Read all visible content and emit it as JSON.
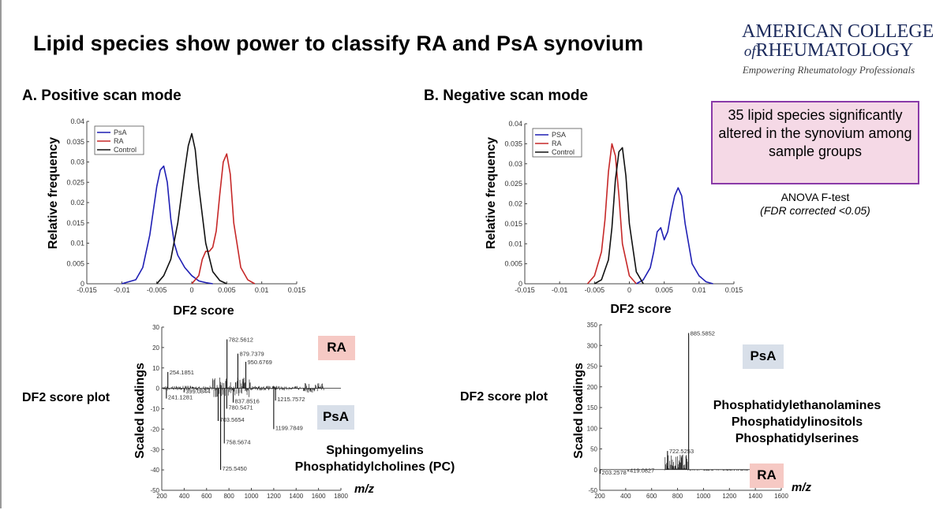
{
  "slide": {
    "title": "Lipid species show power to classify RA and PsA synovium",
    "logo": {
      "line1": "AMERICAN COLLEGE",
      "line2_of": "of",
      "line2": "RHEUMATOLOGY",
      "tagline": "Empowering Rheumatology Professionals"
    },
    "sectionA": "A. Positive scan mode",
    "sectionB": "B. Negative scan mode",
    "note": {
      "text": "35 lipid species significantly altered in the synovium among sample groups",
      "test": "ANOVA F-test",
      "fdr": "(FDR corrected <0.05)"
    },
    "plot_label_left": "DF2 score plot",
    "plot_label_right": "DF2 score plot",
    "tag_ra": "RA",
    "tag_psa": "PsA",
    "classes_left": [
      "Sphingomyelins",
      "Phosphatidylcholines (PC)"
    ],
    "classes_right": [
      "Phosphatidylethanolamines",
      "Phosphatidylinositols",
      "Phosphatidylserines"
    ],
    "mz_label": "m/z"
  },
  "chart_data": [
    {
      "type": "line",
      "name": "A-distribution",
      "xlabel": "DF2 score",
      "ylabel": "Relative frequency",
      "xlim": [
        -0.015,
        0.015
      ],
      "ylim": [
        0,
        0.04
      ],
      "xticks": [
        "-0.015",
        "-0.01",
        "-0.005",
        "0",
        "0.005",
        "0.01",
        "0.015"
      ],
      "yticks": [
        "0",
        "0.005",
        "0.01",
        "0.015",
        "0.02",
        "0.025",
        "0.03",
        "0.035",
        "0.04"
      ],
      "legend": [
        "PsA",
        "RA",
        "Control"
      ],
      "legend_position": "top-left",
      "colors": [
        "#1f1fb4",
        "#c62828",
        "#111111"
      ],
      "series": [
        {
          "name": "PsA",
          "color": "#1f1fb4",
          "x": [
            -0.01,
            -0.008,
            -0.007,
            -0.006,
            -0.005,
            -0.0045,
            -0.004,
            -0.0035,
            -0.003,
            -0.0025,
            -0.002,
            -0.001,
            0,
            0.001,
            0.002,
            0.003
          ],
          "y": [
            0,
            0.001,
            0.004,
            0.012,
            0.024,
            0.028,
            0.029,
            0.025,
            0.016,
            0.01,
            0.007,
            0.004,
            0.002,
            0.0007,
            0.0003,
            0
          ]
        },
        {
          "name": "RA",
          "color": "#c62828",
          "x": [
            0,
            0.001,
            0.0015,
            0.002,
            0.0025,
            0.003,
            0.0035,
            0.004,
            0.0045,
            0.005,
            0.0055,
            0.006,
            0.007,
            0.008,
            0.009
          ],
          "y": [
            0,
            0.002,
            0.006,
            0.008,
            0.008,
            0.009,
            0.013,
            0.022,
            0.03,
            0.032,
            0.027,
            0.015,
            0.004,
            0.001,
            0
          ]
        },
        {
          "name": "Control",
          "color": "#111111",
          "x": [
            -0.005,
            -0.004,
            -0.003,
            -0.002,
            -0.001,
            -0.0005,
            0,
            0.0005,
            0.001,
            0.002,
            0.003,
            0.004,
            0.005
          ],
          "y": [
            0,
            0.002,
            0.006,
            0.015,
            0.028,
            0.034,
            0.037,
            0.033,
            0.024,
            0.01,
            0.003,
            0.0008,
            0
          ]
        }
      ]
    },
    {
      "type": "line",
      "name": "B-distribution",
      "xlabel": "DF2 score",
      "ylabel": "Relative frequency",
      "xlim": [
        -0.015,
        0.015
      ],
      "ylim": [
        0,
        0.04
      ],
      "xticks": [
        "-0.015",
        "-0.01",
        "-0.005",
        "0",
        "0.005",
        "0.01",
        "0.015"
      ],
      "yticks": [
        "0",
        "0.005",
        "0.01",
        "0.015",
        "0.02",
        "0.025",
        "0.03",
        "0.035",
        "0.04"
      ],
      "legend": [
        "PSA",
        "RA",
        "Control"
      ],
      "legend_position": "top-left",
      "colors": [
        "#1f1fb4",
        "#c62828",
        "#111111"
      ],
      "series": [
        {
          "name": "PSA",
          "color": "#1f1fb4",
          "x": [
            0.001,
            0.002,
            0.003,
            0.0035,
            0.004,
            0.0045,
            0.005,
            0.0055,
            0.006,
            0.0065,
            0.007,
            0.0075,
            0.008,
            0.009,
            0.01,
            0.011,
            0.012
          ],
          "y": [
            0,
            0.001,
            0.004,
            0.008,
            0.013,
            0.014,
            0.011,
            0.013,
            0.018,
            0.022,
            0.024,
            0.022,
            0.015,
            0.005,
            0.002,
            0.0005,
            0
          ]
        },
        {
          "name": "RA",
          "color": "#c62828",
          "x": [
            -0.006,
            -0.005,
            -0.004,
            -0.0035,
            -0.003,
            -0.0025,
            -0.002,
            -0.0015,
            -0.001,
            0,
            0.001
          ],
          "y": [
            0,
            0.002,
            0.008,
            0.016,
            0.028,
            0.035,
            0.032,
            0.022,
            0.01,
            0.002,
            0
          ]
        },
        {
          "name": "Control",
          "color": "#111111",
          "x": [
            -0.005,
            -0.004,
            -0.003,
            -0.0025,
            -0.002,
            -0.0015,
            -0.001,
            -0.0005,
            0,
            0.001,
            0.002
          ],
          "y": [
            0,
            0.001,
            0.006,
            0.014,
            0.026,
            0.033,
            0.034,
            0.027,
            0.015,
            0.003,
            0
          ]
        }
      ]
    },
    {
      "type": "bar",
      "name": "A-loadings",
      "xlabel": "m/z",
      "ylabel": "Scaled loadings",
      "xlim": [
        200,
        1800
      ],
      "ylim": [
        -50,
        30
      ],
      "xticks": [
        "200",
        "400",
        "600",
        "800",
        "1000",
        "1200",
        "1400",
        "1600",
        "1800"
      ],
      "yticks": [
        "-50",
        "-40",
        "-30",
        "-20",
        "-10",
        "0",
        "10",
        "20",
        "30"
      ],
      "peaks": [
        {
          "mz": 254.1851,
          "value": 8,
          "label": "254.1851"
        },
        {
          "mz": 241.1281,
          "value": -5,
          "label": "241.1281"
        },
        {
          "mz": 399.0844,
          "value": -2,
          "label": "399.0844"
        },
        {
          "mz": 703.5654,
          "value": -16,
          "label": "703.5654"
        },
        {
          "mz": 758.5674,
          "value": -27,
          "label": "758.5674"
        },
        {
          "mz": 725.545,
          "value": -40,
          "label": "725.5450"
        },
        {
          "mz": 780.5471,
          "value": -10,
          "label": "780.5471"
        },
        {
          "mz": 782.5612,
          "value": 24,
          "label": "782.5612"
        },
        {
          "mz": 879.7379,
          "value": 17,
          "label": "879.7379"
        },
        {
          "mz": 950.6769,
          "value": 13,
          "label": "950.6769"
        },
        {
          "mz": 837.8516,
          "value": -7,
          "label": "837.8516"
        },
        {
          "mz": 1215.7572,
          "value": -6,
          "label": "1215.7572"
        },
        {
          "mz": 1199.7849,
          "value": -20,
          "label": "1199.7849"
        }
      ]
    },
    {
      "type": "bar",
      "name": "B-loadings",
      "xlabel": "m/z",
      "ylabel": "Scaled loadings",
      "xlim": [
        200,
        1600
      ],
      "ylim": [
        -50,
        350
      ],
      "xticks": [
        "200",
        "400",
        "600",
        "800",
        "1000",
        "1200",
        "1400",
        "1600"
      ],
      "yticks": [
        "-50",
        "0",
        "50",
        "100",
        "150",
        "200",
        "250",
        "300",
        "350"
      ],
      "peaks": [
        {
          "mz": 885.5852,
          "value": 330,
          "label": "885.5852"
        },
        {
          "mz": 722.5253,
          "value": 45,
          "label": "722.5253"
        },
        {
          "mz": 419.0827,
          "value": -5,
          "label": "419.0827"
        },
        {
          "mz": 203.2578,
          "value": -10,
          "label": "203.2578"
        }
      ]
    }
  ]
}
